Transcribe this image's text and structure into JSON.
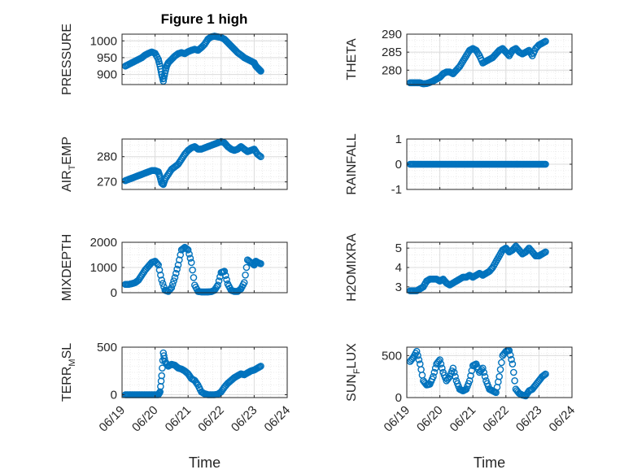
{
  "figure": {
    "title": "Figure 1 high"
  },
  "chart_data": [
    {
      "type": "scatter",
      "ylabel": "PRESSURE",
      "xlabel": "",
      "xlim": [
        0,
        5
      ],
      "ylim": [
        870,
        1020
      ],
      "yticks": [
        900,
        950,
        1000
      ],
      "xticks": [
        0,
        1,
        2,
        3,
        4,
        5
      ],
      "xticklabels": [
        "06/19",
        "06/20",
        "06/21",
        "06/22",
        "06/23",
        "06/24"
      ],
      "grid": true,
      "series": [
        {
          "x": [
            0.1,
            0.2,
            0.3,
            0.4,
            0.5,
            0.6,
            0.7,
            0.8,
            0.9,
            1.0,
            1.1,
            1.15,
            1.2,
            1.25,
            1.3,
            1.35,
            1.4,
            1.5,
            1.6,
            1.7,
            1.8,
            1.9,
            2.0,
            2.1,
            2.2,
            2.3,
            2.4,
            2.5,
            2.6,
            2.7,
            2.8,
            2.9,
            3.0,
            3.1,
            3.2,
            3.3,
            3.4,
            3.5,
            3.6,
            3.7,
            3.8,
            3.9,
            4.0,
            4.05,
            4.1,
            4.15,
            4.2
          ],
          "y": [
            925,
            930,
            935,
            940,
            945,
            950,
            958,
            963,
            967,
            963,
            945,
            925,
            900,
            880,
            905,
            925,
            935,
            945,
            955,
            962,
            965,
            962,
            968,
            972,
            975,
            972,
            980,
            990,
            1005,
            1012,
            1014,
            1012,
            1010,
            1005,
            995,
            985,
            975,
            965,
            958,
            950,
            945,
            940,
            935,
            925,
            920,
            915,
            910
          ]
        }
      ]
    },
    {
      "type": "scatter",
      "ylabel": "THETA",
      "xlabel": "",
      "xlim": [
        0,
        5
      ],
      "ylim": [
        276,
        290
      ],
      "yticks": [
        280,
        285,
        290
      ],
      "xticks": [
        0,
        1,
        2,
        3,
        4,
        5
      ],
      "xticklabels": [
        "06/19",
        "06/20",
        "06/21",
        "06/22",
        "06/23",
        "06/24"
      ],
      "grid": true,
      "series": [
        {
          "x": [
            0.1,
            0.2,
            0.3,
            0.4,
            0.5,
            0.6,
            0.7,
            0.8,
            0.9,
            1.0,
            1.1,
            1.2,
            1.3,
            1.4,
            1.5,
            1.6,
            1.7,
            1.8,
            1.9,
            2.0,
            2.1,
            2.2,
            2.3,
            2.4,
            2.5,
            2.6,
            2.7,
            2.8,
            2.9,
            3.0,
            3.1,
            3.2,
            3.3,
            3.4,
            3.5,
            3.6,
            3.7,
            3.8,
            3.9,
            4.0,
            4.1,
            4.2
          ],
          "y": [
            276.5,
            276.5,
            276.5,
            276.5,
            276.2,
            276.3,
            276.6,
            277.0,
            277.5,
            278.0,
            279.0,
            279.5,
            279.5,
            279.0,
            280.0,
            281.0,
            282.5,
            284.0,
            285.5,
            286.0,
            285.5,
            284.0,
            282.0,
            282.5,
            283.0,
            283.5,
            284.5,
            285.5,
            286.0,
            285.0,
            284.0,
            285.5,
            286.0,
            285.0,
            284.5,
            285.0,
            285.5,
            284.0,
            286.0,
            287.0,
            287.5,
            288.0
          ]
        }
      ]
    },
    {
      "type": "scatter",
      "ylabel": "AIR_TEMP",
      "xlabel": "",
      "xlim": [
        0,
        5
      ],
      "ylim": [
        267,
        287
      ],
      "yticks": [
        270,
        280
      ],
      "xticks": [
        0,
        1,
        2,
        3,
        4,
        5
      ],
      "xticklabels": [
        "06/19",
        "06/20",
        "06/21",
        "06/22",
        "06/23",
        "06/24"
      ],
      "grid": true,
      "series": [
        {
          "x": [
            0.1,
            0.2,
            0.3,
            0.4,
            0.5,
            0.6,
            0.7,
            0.8,
            0.9,
            1.0,
            1.1,
            1.15,
            1.2,
            1.25,
            1.3,
            1.4,
            1.5,
            1.6,
            1.7,
            1.8,
            1.9,
            2.0,
            2.1,
            2.2,
            2.3,
            2.4,
            2.5,
            2.6,
            2.7,
            2.8,
            2.9,
            3.0,
            3.1,
            3.2,
            3.3,
            3.4,
            3.5,
            3.6,
            3.7,
            3.8,
            3.9,
            4.0,
            4.1,
            4.2
          ],
          "y": [
            270.5,
            271,
            271.5,
            272,
            272.5,
            273,
            273.5,
            274,
            274.5,
            274.5,
            274,
            272,
            269.5,
            269,
            271,
            273,
            275,
            276,
            277,
            279,
            281,
            282.5,
            283.5,
            284,
            283,
            283,
            283.5,
            284,
            284.5,
            285,
            285.5,
            286,
            285.5,
            284,
            283,
            282.5,
            283,
            284,
            283,
            282,
            282.5,
            283,
            281,
            280
          ]
        }
      ]
    },
    {
      "type": "scatter",
      "ylabel": "RAINFALL",
      "xlabel": "",
      "xlim": [
        0,
        5
      ],
      "ylim": [
        -1,
        1
      ],
      "yticks": [
        -1,
        0,
        1
      ],
      "xticks": [
        0,
        1,
        2,
        3,
        4,
        5
      ],
      "xticklabels": [
        "06/19",
        "06/20",
        "06/21",
        "06/22",
        "06/23",
        "06/24"
      ],
      "grid": true,
      "series": [
        {
          "x": [
            0.1,
            0.2,
            0.3,
            0.4,
            0.5,
            0.6,
            0.7,
            0.8,
            0.9,
            1.0,
            1.1,
            1.2,
            1.3,
            1.4,
            1.5,
            1.6,
            1.7,
            1.8,
            1.9,
            2.0,
            2.1,
            2.2,
            2.3,
            2.4,
            2.5,
            2.6,
            2.7,
            2.8,
            2.9,
            3.0,
            3.1,
            3.2,
            3.3,
            3.4,
            3.5,
            3.6,
            3.7,
            3.8,
            3.9,
            4.0,
            4.1,
            4.2
          ],
          "y": [
            0,
            0,
            0,
            0,
            0,
            0,
            0,
            0,
            0,
            0,
            0,
            0,
            0,
            0,
            0,
            0,
            0,
            0,
            0,
            0,
            0,
            0,
            0,
            0,
            0,
            0,
            0,
            0,
            0,
            0,
            0,
            0,
            0,
            0,
            0,
            0,
            0,
            0,
            0,
            0,
            0,
            0
          ]
        }
      ]
    },
    {
      "type": "scatter",
      "ylabel": "MIXDEPTH",
      "xlabel": "",
      "xlim": [
        0,
        5
      ],
      "ylim": [
        0,
        2000
      ],
      "yticks": [
        0,
        1000,
        2000
      ],
      "xticks": [
        0,
        1,
        2,
        3,
        4,
        5
      ],
      "xticklabels": [
        "06/19",
        "06/20",
        "06/21",
        "06/22",
        "06/23",
        "06/24"
      ],
      "grid": true,
      "series": [
        {
          "x": [
            0.1,
            0.2,
            0.3,
            0.4,
            0.5,
            0.6,
            0.7,
            0.8,
            0.9,
            1.0,
            1.1,
            1.2,
            1.3,
            1.4,
            1.5,
            1.6,
            1.7,
            1.8,
            1.9,
            2.0,
            2.1,
            2.2,
            2.3,
            2.4,
            2.5,
            2.6,
            2.7,
            2.8,
            2.9,
            3.0,
            3.1,
            3.2,
            3.3,
            3.4,
            3.5,
            3.6,
            3.7,
            3.8,
            3.9,
            4.0,
            4.05,
            4.1,
            4.2
          ],
          "y": [
            330,
            330,
            360,
            400,
            500,
            700,
            900,
            1050,
            1200,
            1250,
            1100,
            500,
            100,
            50,
            200,
            600,
            1100,
            1700,
            1800,
            1700,
            1200,
            300,
            50,
            30,
            30,
            30,
            40,
            100,
            300,
            800,
            850,
            350,
            100,
            50,
            50,
            150,
            400,
            1300,
            1200,
            1100,
            1250,
            1200,
            1150
          ]
        }
      ]
    },
    {
      "type": "scatter",
      "ylabel": "H2OMIXRA",
      "xlabel": "",
      "xlim": [
        0,
        5
      ],
      "ylim": [
        2.7,
        5.3
      ],
      "yticks": [
        3,
        4,
        5
      ],
      "xticks": [
        0,
        1,
        2,
        3,
        4,
        5
      ],
      "xticklabels": [
        "06/19",
        "06/20",
        "06/21",
        "06/22",
        "06/23",
        "06/24"
      ],
      "grid": true,
      "series": [
        {
          "x": [
            0.1,
            0.2,
            0.3,
            0.4,
            0.5,
            0.6,
            0.7,
            0.8,
            0.9,
            1.0,
            1.1,
            1.2,
            1.3,
            1.4,
            1.5,
            1.6,
            1.7,
            1.8,
            1.9,
            2.0,
            2.1,
            2.2,
            2.3,
            2.4,
            2.5,
            2.6,
            2.7,
            2.8,
            2.9,
            3.0,
            3.1,
            3.2,
            3.3,
            3.4,
            3.5,
            3.6,
            3.7,
            3.8,
            3.9,
            4.0,
            4.1,
            4.2
          ],
          "y": [
            2.8,
            2.8,
            2.8,
            2.9,
            3.0,
            3.3,
            3.4,
            3.4,
            3.4,
            3.3,
            3.4,
            3.2,
            3.1,
            3.2,
            3.3,
            3.4,
            3.5,
            3.5,
            3.6,
            3.5,
            3.6,
            3.7,
            3.6,
            3.7,
            3.8,
            4.0,
            4.3,
            4.6,
            4.9,
            5.0,
            4.8,
            4.9,
            5.1,
            4.9,
            4.7,
            4.8,
            5.0,
            4.8,
            4.6,
            4.6,
            4.7,
            4.8
          ]
        }
      ]
    },
    {
      "type": "scatter",
      "ylabel": "TERR_MSL",
      "xlabel": "Time",
      "xlim": [
        0,
        5
      ],
      "ylim": [
        -30,
        500
      ],
      "yticks": [
        0,
        500
      ],
      "xticks": [
        0,
        1,
        2,
        3,
        4,
        5
      ],
      "xticklabels": [
        "06/19",
        "06/20",
        "06/21",
        "06/22",
        "06/23",
        "06/24"
      ],
      "grid": true,
      "series": [
        {
          "x": [
            0.1,
            0.2,
            0.3,
            0.4,
            0.5,
            0.6,
            0.7,
            0.8,
            0.9,
            1.0,
            1.1,
            1.15,
            1.2,
            1.25,
            1.3,
            1.4,
            1.5,
            1.6,
            1.7,
            1.8,
            1.9,
            2.0,
            2.1,
            2.2,
            2.3,
            2.4,
            2.5,
            2.6,
            2.7,
            2.8,
            2.9,
            3.0,
            3.1,
            3.2,
            3.3,
            3.4,
            3.5,
            3.6,
            3.7,
            3.8,
            3.9,
            4.0,
            4.1,
            4.2
          ],
          "y": [
            0,
            0,
            0,
            0,
            0,
            0,
            0,
            0,
            0,
            0,
            0,
            30,
            200,
            440,
            350,
            300,
            320,
            310,
            280,
            270,
            250,
            220,
            170,
            150,
            100,
            30,
            10,
            0,
            0,
            0,
            5,
            30,
            80,
            120,
            150,
            180,
            200,
            220,
            210,
            230,
            250,
            260,
            280,
            300
          ]
        }
      ]
    },
    {
      "type": "scatter",
      "ylabel": "SUN_FLUX",
      "xlabel": "Time",
      "xlim": [
        0,
        5
      ],
      "ylim": [
        0,
        600
      ],
      "yticks": [
        0,
        500
      ],
      "xticks": [
        0,
        1,
        2,
        3,
        4,
        5
      ],
      "xticklabels": [
        "06/19",
        "06/20",
        "06/21",
        "06/22",
        "06/23",
        "06/24"
      ],
      "grid": true,
      "series": [
        {
          "x": [
            0.1,
            0.2,
            0.3,
            0.4,
            0.5,
            0.6,
            0.7,
            0.8,
            0.9,
            1.0,
            1.1,
            1.2,
            1.3,
            1.4,
            1.5,
            1.6,
            1.7,
            1.8,
            1.9,
            2.0,
            2.1,
            2.2,
            2.3,
            2.4,
            2.5,
            2.6,
            2.7,
            2.8,
            2.9,
            3.0,
            3.1,
            3.2,
            3.3,
            3.4,
            3.5,
            3.6,
            3.7,
            3.8,
            3.9,
            4.0,
            4.1,
            4.2
          ],
          "y": [
            430,
            480,
            550,
            400,
            200,
            150,
            160,
            250,
            400,
            450,
            300,
            200,
            250,
            350,
            200,
            100,
            80,
            100,
            200,
            380,
            400,
            300,
            350,
            200,
            100,
            80,
            60,
            250,
            500,
            550,
            560,
            400,
            100,
            50,
            30,
            20,
            80,
            100,
            150,
            200,
            250,
            280
          ]
        }
      ]
    }
  ],
  "colors": {
    "marker": "#0072BD",
    "axis": "#262626",
    "grid": "#dcdcdc",
    "minorgrid": "#e6e6e6"
  }
}
